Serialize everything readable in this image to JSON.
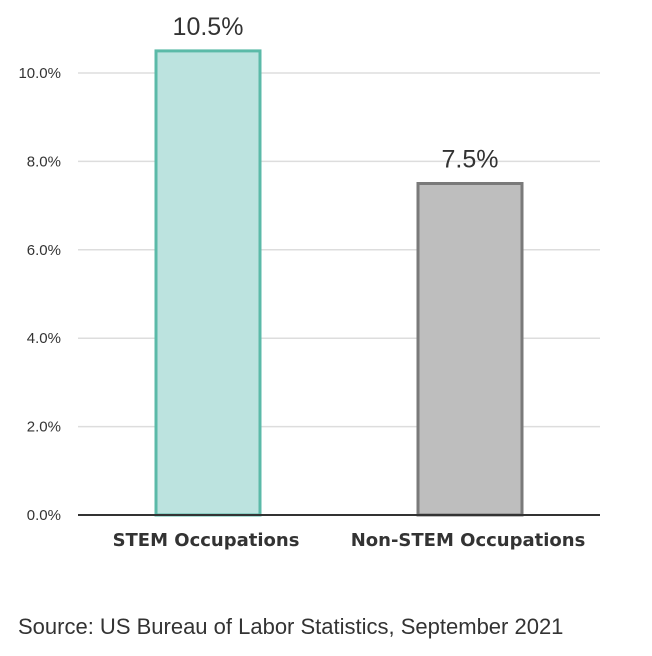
{
  "chart_data": {
    "type": "bar",
    "categories": [
      "STEM Occupations",
      "Non-STEM Occupations"
    ],
    "values": [
      10.5,
      7.5
    ],
    "data_labels": [
      "10.5%",
      "7.5%"
    ],
    "y_ticks": [
      0,
      2,
      4,
      6,
      8,
      10
    ],
    "y_tick_labels": [
      "0.0%",
      "2.0%",
      "4.0%",
      "6.0%",
      "8.0%",
      "10.0%"
    ],
    "ylim": [
      0,
      10.5
    ],
    "grid": true,
    "legend": "none",
    "colors": {
      "fills": [
        "#bce3df",
        "#bebebe"
      ],
      "strokes": [
        "#5bbaa8",
        "#7a7a7a"
      ],
      "grid": "#dddddd",
      "axis": "#333333",
      "text": "#333333"
    }
  },
  "source_text": "Source:  US Bureau of Labor Statistics, September 2021"
}
